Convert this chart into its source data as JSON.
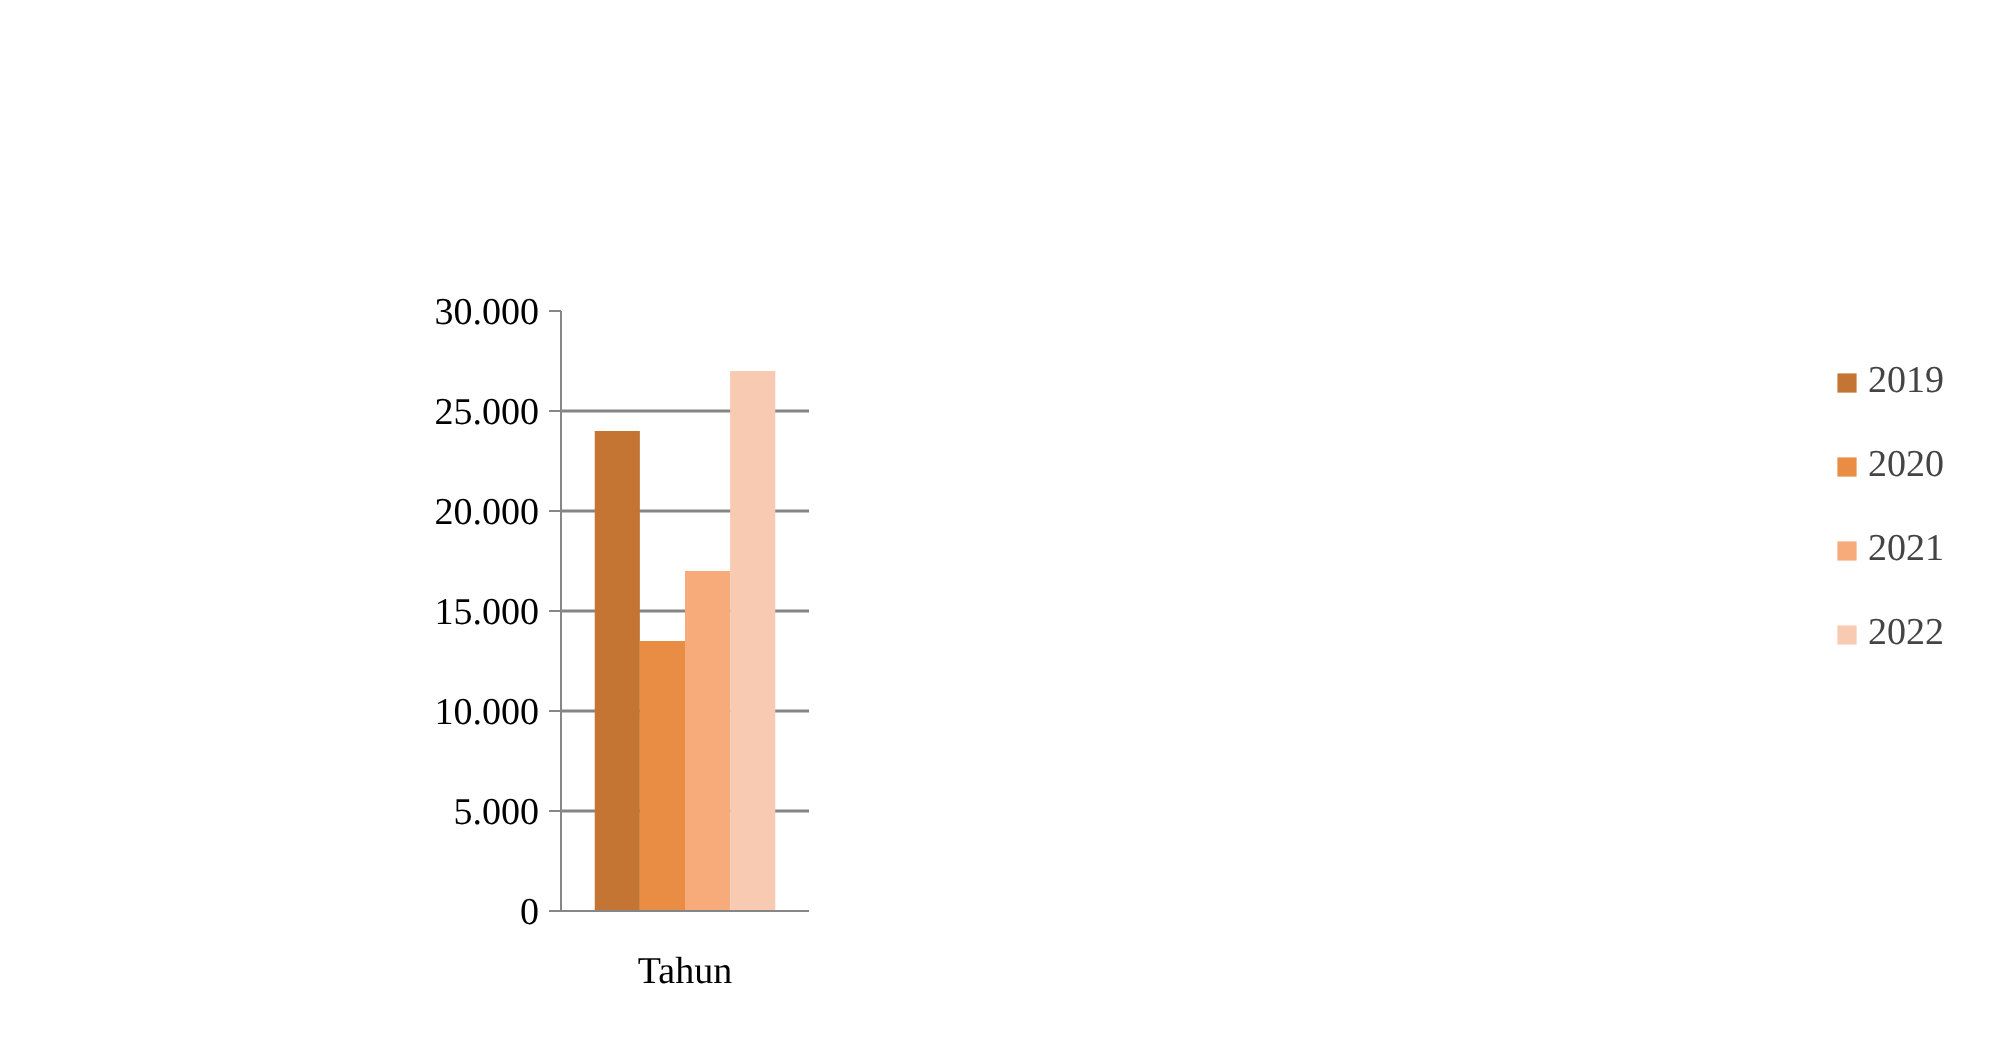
{
  "chart_data": {
    "type": "bar",
    "categories": [
      "Tahun"
    ],
    "series": [
      {
        "name": "2019",
        "color": "#c47533",
        "values": [
          24000
        ]
      },
      {
        "name": "2020",
        "color": "#e88d43",
        "values": [
          13500
        ]
      },
      {
        "name": "2021",
        "color": "#f7aa7a",
        "values": [
          17000
        ]
      },
      {
        "name": "2022",
        "color": "#f8cab1",
        "values": [
          27000
        ]
      }
    ],
    "ylim": [
      0,
      30000
    ],
    "yticks": [
      {
        "value": 0,
        "label": "0"
      },
      {
        "value": 5000,
        "label": "5.000"
      },
      {
        "value": 10000,
        "label": "10.000"
      },
      {
        "value": 15000,
        "label": "15.000"
      },
      {
        "value": 20000,
        "label": "20.000"
      },
      {
        "value": 25000,
        "label": "25.000"
      },
      {
        "value": 30000,
        "label": "30.000"
      }
    ],
    "grid": "y",
    "legend": "right"
  }
}
